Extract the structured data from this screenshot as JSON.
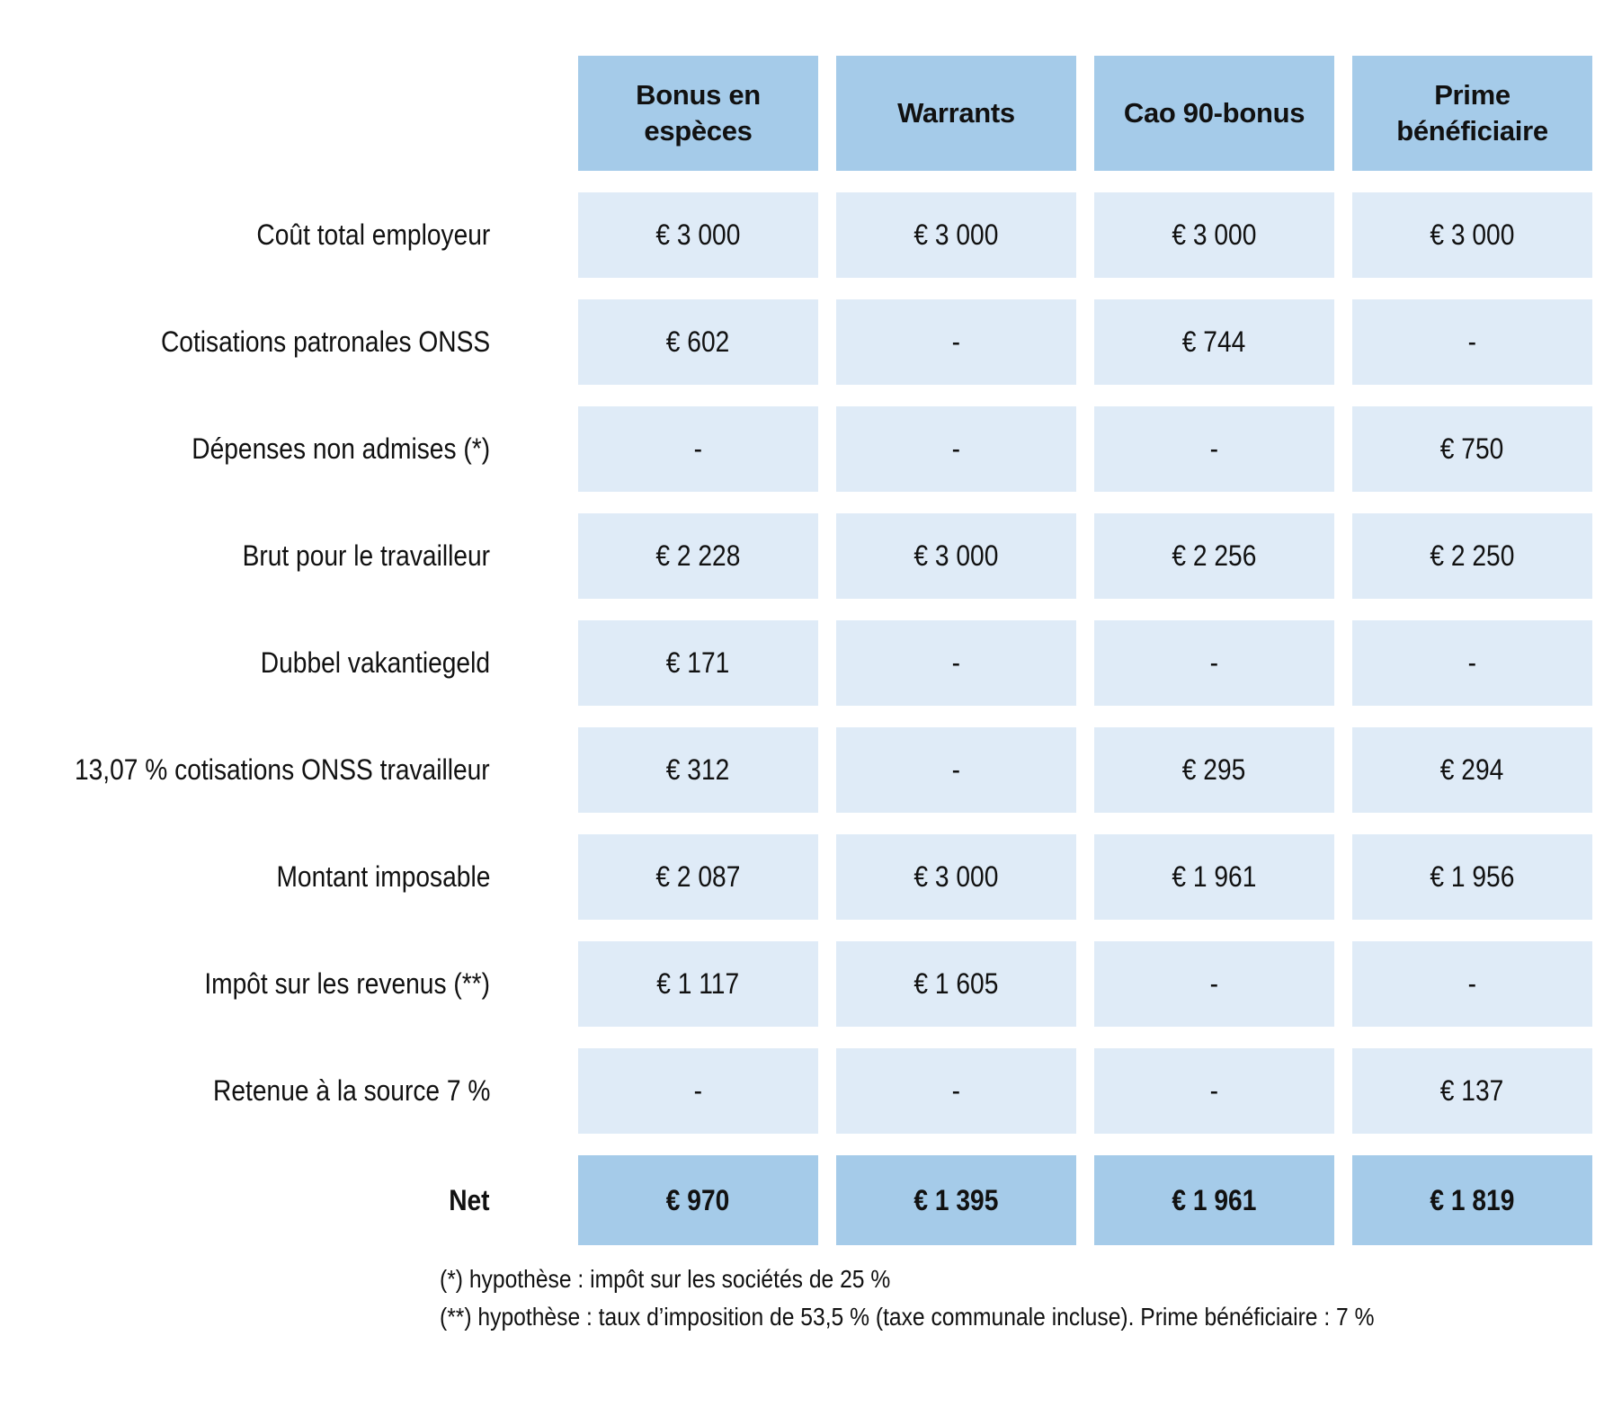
{
  "chart_data": {
    "type": "table",
    "columns": [
      "Bonus en espèces",
      "Warrants",
      "Cao 90-bonus",
      "Prime bénéficiaire"
    ],
    "rows": [
      {
        "label": "Coût total employeur",
        "values": [
          "€ 3 000",
          "€ 3 000",
          "€ 3 000",
          "€ 3 000"
        ]
      },
      {
        "label": "Cotisations patronales ONSS",
        "values": [
          "€ 602",
          "-",
          "€ 744",
          "-"
        ]
      },
      {
        "label": "Dépenses non admises (*)",
        "values": [
          "-",
          "-",
          "-",
          "€ 750"
        ]
      },
      {
        "label": "Brut pour le travailleur",
        "values": [
          "€ 2 228",
          "€ 3 000",
          "€ 2 256",
          "€ 2 250"
        ]
      },
      {
        "label": "Dubbel vakantiegeld",
        "values": [
          "€ 171",
          "-",
          "-",
          "-"
        ]
      },
      {
        "label": "13,07 % cotisations ONSS travailleur",
        "values": [
          "€ 312",
          "-",
          "€ 295",
          "€ 294"
        ]
      },
      {
        "label": "Montant imposable",
        "values": [
          "€ 2 087",
          "€ 3 000",
          "€ 1 961",
          "€ 1 956"
        ]
      },
      {
        "label": "Impôt sur les revenus (**)",
        "values": [
          "€ 1 117",
          "€ 1 605",
          "-",
          "-"
        ]
      },
      {
        "label": "Retenue à la source 7 %",
        "values": [
          "-",
          "-",
          "-",
          "€ 137"
        ]
      }
    ],
    "net": {
      "label": "Net",
      "values": [
        "€ 970",
        "€ 1 395",
        "€ 1 961",
        "€ 1 819"
      ]
    },
    "footnotes": [
      "(*) hypothèse : impôt sur les sociétés de 25 %",
      "(**) hypothèse : taux d’imposition de 53,5 % (taxe communale incluse). Prime bénéficiaire : 7 %"
    ]
  },
  "colors": {
    "header_bg": "#a5cbe9",
    "cell_bg": "#dfebf7",
    "net_bg": "#a5cbe9",
    "text": "#111111",
    "background": "#ffffff"
  }
}
